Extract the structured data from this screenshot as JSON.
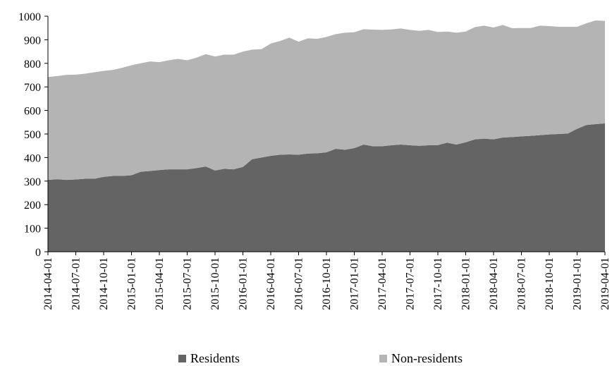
{
  "chart_data": {
    "type": "area",
    "stacked": true,
    "x_tick_labels": [
      "2014-04-01",
      "2014-07-01",
      "2014-10-01",
      "2015-01-01",
      "2015-04-01",
      "2015-07-01",
      "2015-10-01",
      "2016-01-01",
      "2016-04-01",
      "2016-07-01",
      "2016-10-01",
      "2017-01-01",
      "2017-04-01",
      "2017-07-01",
      "2017-10-01",
      "2018-01-01",
      "2018-04-01",
      "2018-07-01",
      "2018-10-01",
      "2019-01-01",
      "2019-04-01"
    ],
    "y_ticks": [
      0,
      100,
      200,
      300,
      400,
      500,
      600,
      700,
      800,
      900,
      1000
    ],
    "ylim": [
      0,
      1000
    ],
    "grid": false,
    "legend_position": "bottom",
    "series": [
      {
        "name": "Residents",
        "color": "#646464",
        "values": [
          305,
          308,
          305,
          307,
          310,
          310,
          318,
          322,
          322,
          325,
          340,
          343,
          347,
          350,
          350,
          350,
          355,
          362,
          345,
          352,
          350,
          360,
          393,
          400,
          407,
          412,
          413,
          412,
          417,
          418,
          422,
          437,
          433,
          440,
          455,
          448,
          448,
          452,
          455,
          452,
          450,
          452,
          453,
          463,
          455,
          465,
          477,
          480,
          477,
          485,
          487,
          490,
          492,
          495,
          498,
          500,
          502,
          522,
          538,
          542,
          545
        ]
      },
      {
        "name": "Non-residents",
        "color": "#b4b4b4",
        "values": [
          437,
          438,
          446,
          445,
          446,
          452,
          450,
          450,
          459,
          467,
          460,
          465,
          458,
          463,
          469,
          463,
          469,
          477,
          484,
          485,
          487,
          490,
          465,
          460,
          477,
          483,
          496,
          480,
          489,
          486,
          490,
          487,
          497,
          492,
          490,
          495,
          494,
          492,
          493,
          490,
          488,
          490,
          480,
          472,
          475,
          470,
          477,
          480,
          475,
          478,
          462,
          460,
          458,
          465,
          460,
          455,
          453,
          433,
          432,
          440,
          435
        ]
      }
    ]
  }
}
